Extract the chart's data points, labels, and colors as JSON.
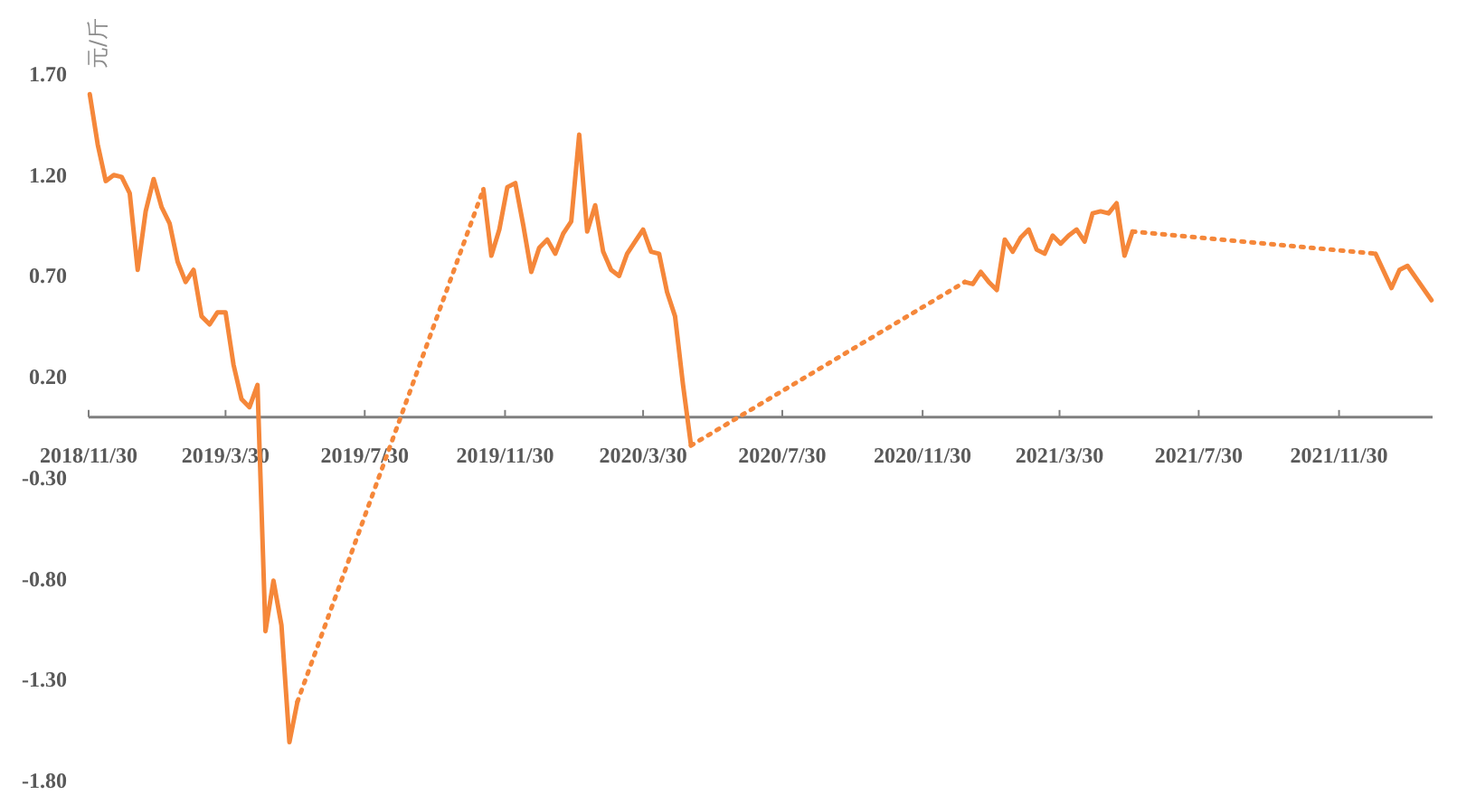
{
  "chart_data": {
    "type": "line",
    "ylabel": "元/斤",
    "line_style": "solid",
    "xlim": [
      "2018-11-30",
      "2022-02-20"
    ],
    "ylim": [
      -1.8,
      1.7
    ],
    "xticks": [
      {
        "value": "2018-11-30",
        "label": "2018/11/30"
      },
      {
        "value": "2019-03-30",
        "label": "2019/3/30"
      },
      {
        "value": "2019-07-30",
        "label": "2019/7/30"
      },
      {
        "value": "2019-11-30",
        "label": "2019/11/30"
      },
      {
        "value": "2020-03-30",
        "label": "2020/3/30"
      },
      {
        "value": "2020-07-30",
        "label": "2020/7/30"
      },
      {
        "value": "2020-11-30",
        "label": "2020/11/30"
      },
      {
        "value": "2021-03-30",
        "label": "2021/3/30"
      },
      {
        "value": "2021-07-30",
        "label": "2021/7/30"
      },
      {
        "value": "2021-11-30",
        "label": "2021/11/30"
      }
    ],
    "yticks": [
      {
        "value": 1.7,
        "label": "1.70"
      },
      {
        "value": 1.2,
        "label": "1.20"
      },
      {
        "value": 0.7,
        "label": "0.70"
      },
      {
        "value": 0.2,
        "label": "0.20"
      },
      {
        "value": -0.3,
        "label": "-0.30"
      },
      {
        "value": -0.8,
        "label": "-0.80"
      },
      {
        "value": -1.3,
        "label": "-1.30"
      },
      {
        "value": -1.8,
        "label": "-1.80"
      }
    ],
    "series": [
      {
        "color": "#f5873a",
        "x": [
          "2018-12-01",
          "2018-12-08",
          "2018-12-15",
          "2018-12-22",
          "2018-12-29",
          "2019-01-05",
          "2019-01-12",
          "2019-01-19",
          "2019-01-26",
          "2019-02-02",
          "2019-02-09",
          "2019-02-16",
          "2019-02-23",
          "2019-03-02",
          "2019-03-09",
          "2019-03-16",
          "2019-03-23",
          "2019-03-30",
          "2019-04-06",
          "2019-04-13",
          "2019-04-20",
          "2019-04-27",
          "2019-05-04",
          "2019-05-11",
          "2019-05-18",
          "2019-05-25",
          "2019-06-01"
        ],
        "values": [
          1.6,
          1.35,
          1.17,
          1.2,
          1.19,
          1.11,
          0.73,
          1.02,
          1.18,
          1.04,
          0.96,
          0.77,
          0.67,
          0.73,
          0.5,
          0.46,
          0.52,
          0.52,
          0.26,
          0.09,
          0.05,
          0.16,
          -1.06,
          -0.81,
          -1.03,
          -1.61,
          -1.41
        ]
      },
      {
        "color": "#f5873a",
        "line_style": "dotted",
        "x": [
          "2019-06-01",
          "2019-11-11"
        ],
        "values": [
          -1.41,
          1.13
        ]
      },
      {
        "color": "#f5873a",
        "x": [
          "2019-11-11",
          "2019-11-18",
          "2019-11-25",
          "2019-12-02",
          "2019-12-09",
          "2019-12-16",
          "2019-12-23",
          "2019-12-30",
          "2020-01-06",
          "2020-01-13",
          "2020-01-20",
          "2020-01-27",
          "2020-02-03",
          "2020-02-10",
          "2020-02-17",
          "2020-02-24",
          "2020-03-02",
          "2020-03-09",
          "2020-03-16",
          "2020-03-23",
          "2020-03-30",
          "2020-04-06",
          "2020-04-13",
          "2020-04-20",
          "2020-04-27",
          "2020-05-04",
          "2020-05-11"
        ],
        "values": [
          1.13,
          0.8,
          0.93,
          1.14,
          1.16,
          0.95,
          0.72,
          0.84,
          0.88,
          0.81,
          0.91,
          0.97,
          1.4,
          0.92,
          1.05,
          0.82,
          0.73,
          0.7,
          0.81,
          0.87,
          0.93,
          0.82,
          0.81,
          0.62,
          0.5,
          0.16,
          -0.14
        ]
      },
      {
        "color": "#f5873a",
        "line_style": "dotted",
        "x": [
          "2020-05-11",
          "2021-01-06"
        ],
        "values": [
          -0.14,
          0.67
        ]
      },
      {
        "color": "#f5873a",
        "x": [
          "2021-01-06",
          "2021-01-13",
          "2021-01-20",
          "2021-01-27",
          "2021-02-03",
          "2021-02-10",
          "2021-02-17",
          "2021-02-24",
          "2021-03-03",
          "2021-03-10",
          "2021-03-17",
          "2021-03-24",
          "2021-03-31",
          "2021-04-07",
          "2021-04-14",
          "2021-04-21",
          "2021-04-28",
          "2021-05-05",
          "2021-05-12",
          "2021-05-19",
          "2021-05-26",
          "2021-06-02"
        ],
        "values": [
          0.67,
          0.66,
          0.72,
          0.67,
          0.63,
          0.88,
          0.82,
          0.89,
          0.93,
          0.83,
          0.81,
          0.9,
          0.86,
          0.9,
          0.93,
          0.87,
          1.01,
          1.02,
          1.01,
          1.06,
          0.8,
          0.92
        ]
      },
      {
        "color": "#f5873a",
        "line_style": "dotted",
        "x": [
          "2021-06-02",
          "2022-01-01"
        ],
        "values": [
          0.92,
          0.81
        ]
      },
      {
        "color": "#f5873a",
        "x": [
          "2022-01-01",
          "2022-01-15",
          "2022-01-22",
          "2022-01-29",
          "2022-02-19"
        ],
        "values": [
          0.81,
          0.64,
          0.73,
          0.75,
          0.58
        ]
      }
    ]
  }
}
